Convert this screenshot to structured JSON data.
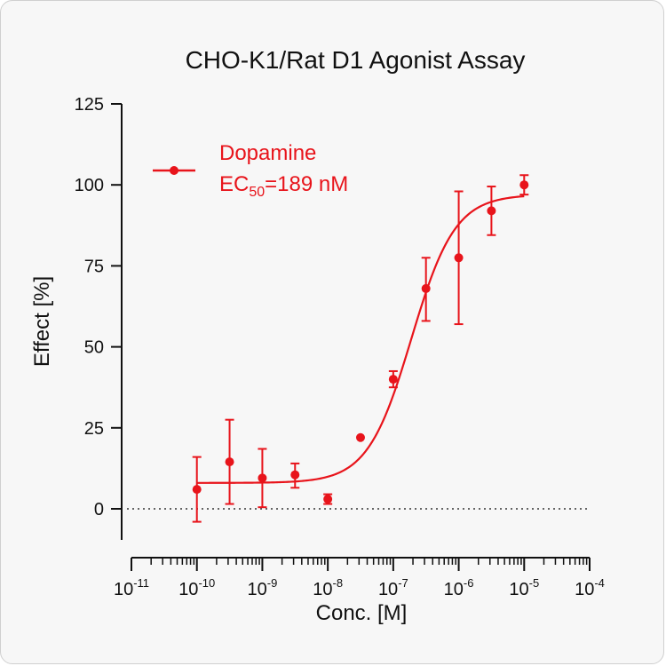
{
  "chart_data": {
    "type": "scatter",
    "title": "CHO-K1/Rat D1 Agonist Assay",
    "xlabel": "Conc. [M]",
    "ylabel": "Effect  [%]",
    "x_scale": "log",
    "xlim": [
      1e-11,
      0.0001
    ],
    "ylim": [
      -10,
      125
    ],
    "x_ticks": [
      {
        "base": "10",
        "exp": "-11",
        "value": 1e-11
      },
      {
        "base": "10",
        "exp": "-10",
        "value": 1e-10
      },
      {
        "base": "10",
        "exp": "-9",
        "value": 1e-09
      },
      {
        "base": "10",
        "exp": "-8",
        "value": 1e-08
      },
      {
        "base": "10",
        "exp": "-7",
        "value": 1e-07
      },
      {
        "base": "10",
        "exp": "-6",
        "value": 1e-06
      },
      {
        "base": "10",
        "exp": "-5",
        "value": 1e-05
      },
      {
        "base": "10",
        "exp": "-4",
        "value": 0.0001
      }
    ],
    "y_ticks": [
      "0",
      "25",
      "50",
      "75",
      "100",
      "125"
    ],
    "reference_line": {
      "y": 0,
      "style": "dotted"
    },
    "legend": {
      "position": "top-left"
    },
    "series": [
      {
        "name": "Dopamine",
        "color": "#e8141b",
        "ec50_prefix": "EC",
        "ec50_sub": "50",
        "ec50_value": "=189 nM",
        "ec50_M": 1.89e-07,
        "bottom": 8,
        "top": 97,
        "hill": 1.3,
        "points": [
          {
            "x": 1e-10,
            "y": 6,
            "err_low": -4,
            "err_high": 16
          },
          {
            "x": 3.16e-10,
            "y": 14.5,
            "err_low": 1.5,
            "err_high": 27.5
          },
          {
            "x": 1e-09,
            "y": 9.5,
            "err_low": 0.5,
            "err_high": 18.5
          },
          {
            "x": 3.16e-09,
            "y": 10.5,
            "err_low": 6.5,
            "err_high": 14
          },
          {
            "x": 1e-08,
            "y": 3,
            "err_low": 1.5,
            "err_high": 4.5
          },
          {
            "x": 3.16e-08,
            "y": 22,
            "err_low": 22,
            "err_high": 22
          },
          {
            "x": 1e-07,
            "y": 40,
            "err_low": 37.5,
            "err_high": 42.5
          },
          {
            "x": 3.16e-07,
            "y": 68,
            "err_low": 58,
            "err_high": 77.5
          },
          {
            "x": 1e-06,
            "y": 77.5,
            "err_low": 57,
            "err_high": 98
          },
          {
            "x": 3.16e-06,
            "y": 92,
            "err_low": 84.5,
            "err_high": 99.5
          },
          {
            "x": 1e-05,
            "y": 100,
            "err_low": 97,
            "err_high": 103
          }
        ]
      }
    ]
  }
}
